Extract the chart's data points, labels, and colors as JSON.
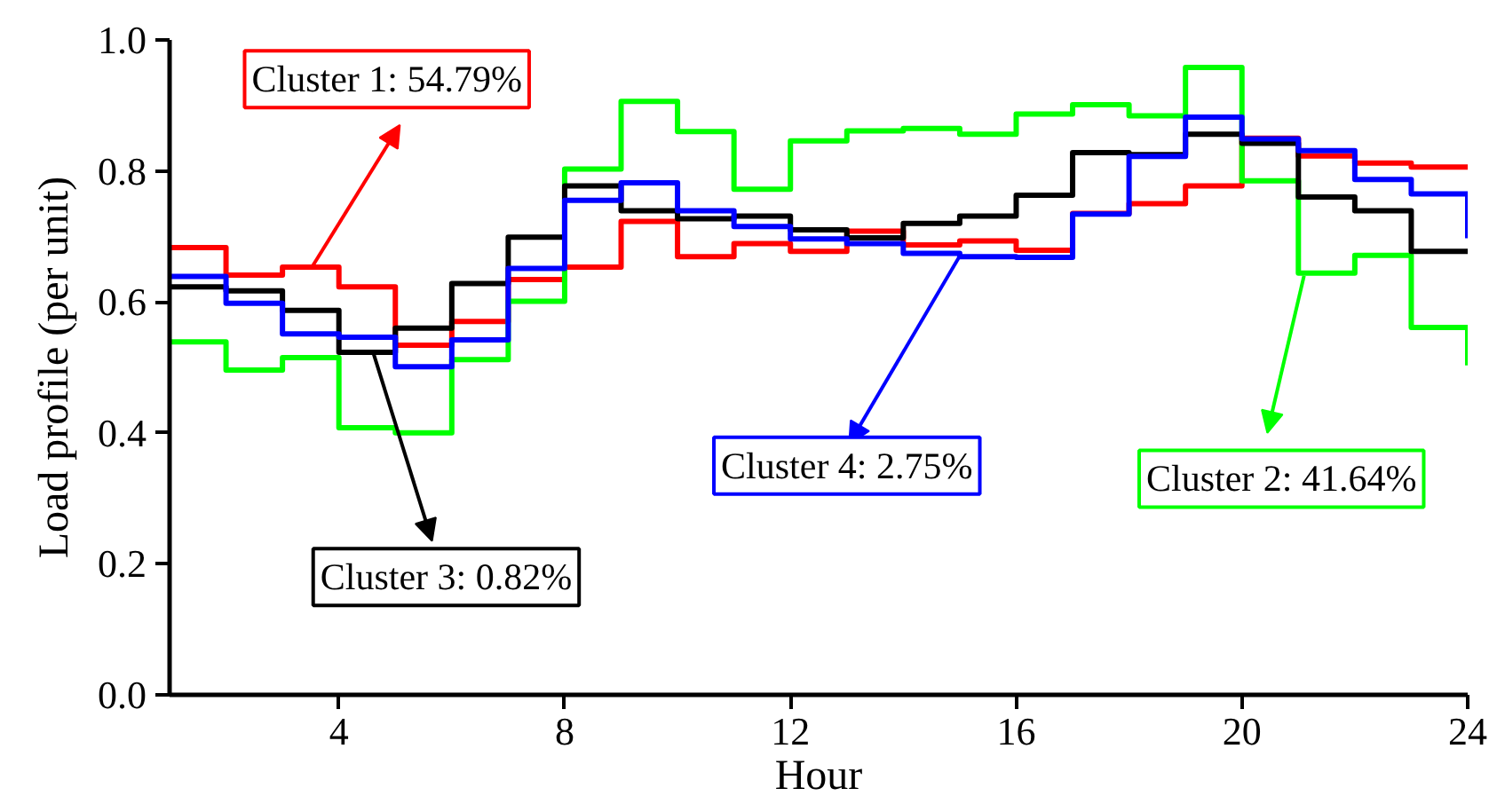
{
  "chart_data": {
    "type": "step",
    "xlabel": "Hour",
    "ylabel": "Load profile (per unit)",
    "x": [
      1,
      2,
      3,
      4,
      5,
      6,
      7,
      8,
      9,
      10,
      11,
      12,
      13,
      14,
      15,
      16,
      17,
      18,
      19,
      20,
      21,
      22,
      23,
      24
    ],
    "series": [
      {
        "color": "#ff0000",
        "values": [
          0.683,
          0.641,
          0.653,
          0.623,
          0.534,
          0.57,
          0.634,
          0.653,
          0.723,
          0.669,
          0.689,
          0.677,
          0.708,
          0.687,
          0.693,
          0.679,
          0.735,
          0.75,
          0.777,
          0.85,
          0.823,
          0.812,
          0.806,
          0.806
        ]
      },
      {
        "color": "#00ff00",
        "values": [
          0.539,
          0.496,
          0.515,
          0.408,
          0.4,
          0.512,
          0.601,
          0.803,
          0.906,
          0.86,
          0.772,
          0.846,
          0.861,
          0.865,
          0.856,
          0.887,
          0.901,
          0.884,
          0.958,
          0.785,
          0.644,
          0.671,
          0.561,
          0.503
        ]
      },
      {
        "color": "#000000",
        "values": [
          0.623,
          0.617,
          0.587,
          0.523,
          0.56,
          0.628,
          0.699,
          0.777,
          0.739,
          0.727,
          0.731,
          0.71,
          0.698,
          0.72,
          0.731,
          0.763,
          0.828,
          0.825,
          0.856,
          0.842,
          0.76,
          0.739,
          0.677,
          0.677
        ]
      },
      {
        "color": "#0000ff",
        "values": [
          0.639,
          0.598,
          0.551,
          0.546,
          0.501,
          0.542,
          0.651,
          0.755,
          0.782,
          0.739,
          0.715,
          0.696,
          0.689,
          0.674,
          0.669,
          0.668,
          0.734,
          0.822,
          0.882,
          0.849,
          0.831,
          0.787,
          0.765,
          0.697
        ]
      }
    ],
    "annotations": [
      {
        "text": "Cluster 1: 54.79%",
        "x": 3.5,
        "y": 0.65
      },
      {
        "text": "Cluster 2: 41.64%",
        "x": 21.1,
        "y": 0.64
      },
      {
        "text": "Cluster 3: 0.82%",
        "x": 4.6,
        "y": 0.525
      },
      {
        "text": "Cluster 4: 2.75%",
        "x": 15.0,
        "y": 0.67
      }
    ],
    "xlim": [
      1,
      24
    ],
    "xticks": [
      4,
      8,
      12,
      16,
      20,
      24
    ],
    "ylim": [
      0,
      1
    ],
    "yticks": [
      {
        "value": 0,
        "label": "0.0"
      },
      {
        "value": 0.2,
        "label": "0.2"
      },
      {
        "value": 0.4,
        "label": "0.4"
      },
      {
        "value": 0.6,
        "label": "0.6"
      },
      {
        "value": 0.8,
        "label": "0.8"
      },
      {
        "value": 1,
        "label": "1.0"
      }
    ],
    "grid": false
  }
}
